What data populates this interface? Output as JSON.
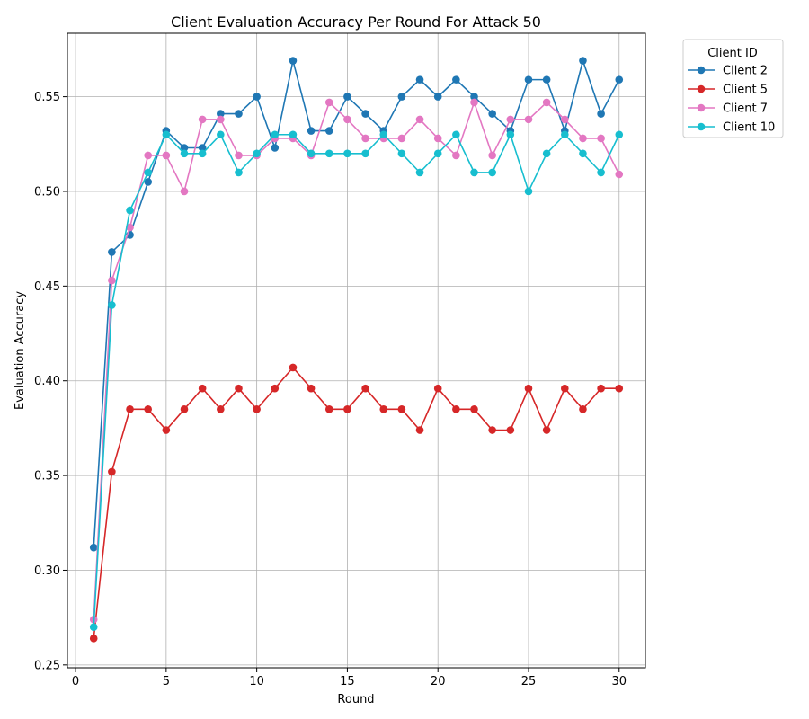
{
  "chart_data": {
    "type": "line",
    "title": "Client Evaluation Accuracy Per Round For Attack 50",
    "xlabel": "Round",
    "ylabel": "Evaluation Accuracy",
    "xlim": [
      -0.45,
      31.45
    ],
    "ylim": [
      0.2485,
      0.5835
    ],
    "xticks": [
      0,
      5,
      10,
      15,
      20,
      25,
      30
    ],
    "yticks": [
      0.25,
      0.3,
      0.35,
      0.4,
      0.45,
      0.5,
      0.55
    ],
    "ytick_labels": [
      "0.25",
      "0.30",
      "0.35",
      "0.40",
      "0.45",
      "0.50",
      "0.55"
    ],
    "grid": true,
    "legend": {
      "title": "Client ID",
      "placement": "outside-top-right"
    },
    "x": [
      1,
      2,
      3,
      4,
      5,
      6,
      7,
      8,
      9,
      10,
      11,
      12,
      13,
      14,
      15,
      16,
      17,
      18,
      19,
      20,
      21,
      22,
      23,
      24,
      25,
      26,
      27,
      28,
      29,
      30
    ],
    "series": [
      {
        "name": "Client 2",
        "color": "#1f77b4",
        "values": [
          0.312,
          0.468,
          0.477,
          0.505,
          0.532,
          0.523,
          0.523,
          0.541,
          0.541,
          0.55,
          0.523,
          0.569,
          0.532,
          0.532,
          0.55,
          0.541,
          0.532,
          0.55,
          0.559,
          0.55,
          0.559,
          0.55,
          0.541,
          0.532,
          0.559,
          0.559,
          0.532,
          0.569,
          0.541,
          0.559
        ]
      },
      {
        "name": "Client 5",
        "color": "#d62728",
        "values": [
          0.264,
          0.352,
          0.385,
          0.385,
          0.374,
          0.385,
          0.396,
          0.385,
          0.396,
          0.385,
          0.396,
          0.407,
          0.396,
          0.385,
          0.385,
          0.396,
          0.385,
          0.385,
          0.374,
          0.396,
          0.385,
          0.385,
          0.374,
          0.374,
          0.396,
          0.374,
          0.396,
          0.385,
          0.396,
          0.396
        ]
      },
      {
        "name": "Client 7",
        "color": "#e377c2",
        "values": [
          0.274,
          0.453,
          0.481,
          0.519,
          0.519,
          0.5,
          0.538,
          0.538,
          0.519,
          0.519,
          0.528,
          0.528,
          0.519,
          0.547,
          0.538,
          0.528,
          0.528,
          0.528,
          0.538,
          0.528,
          0.519,
          0.547,
          0.519,
          0.538,
          0.538,
          0.547,
          0.538,
          0.528,
          0.528,
          0.509
        ]
      },
      {
        "name": "Client 10",
        "color": "#17becf",
        "values": [
          0.27,
          0.44,
          0.49,
          0.51,
          0.53,
          0.52,
          0.52,
          0.53,
          0.51,
          0.52,
          0.53,
          0.53,
          0.52,
          0.52,
          0.52,
          0.52,
          0.53,
          0.52,
          0.51,
          0.52,
          0.53,
          0.51,
          0.51,
          0.53,
          0.5,
          0.52,
          0.53,
          0.52,
          0.51,
          0.53
        ]
      }
    ]
  }
}
